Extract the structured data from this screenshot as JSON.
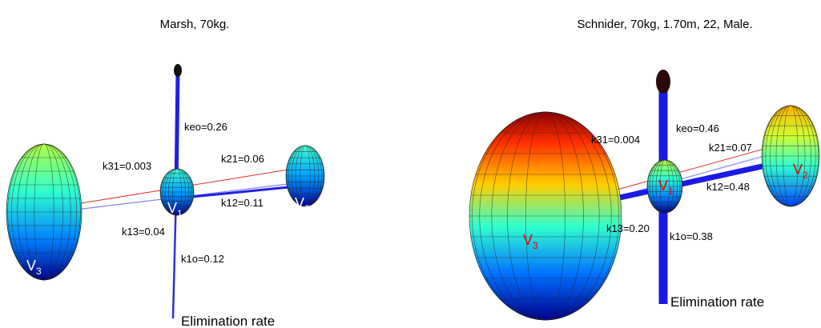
{
  "panels": [
    {
      "title": "Marsh, 70kg.",
      "compartments": [
        {
          "label": "V",
          "sub": "1"
        },
        {
          "label": "V",
          "sub": "2"
        },
        {
          "label": "V",
          "sub": "3"
        }
      ],
      "rates": {
        "keo": "keo=0.26",
        "k31": "k31=0.003",
        "k21": "k21=0.06",
        "k12": "k12=0.11",
        "k13": "k13=0.04",
        "k1o": "k1o=0.12"
      },
      "elimination": "Elimination rate"
    },
    {
      "title": "Schnider, 70kg, 1.70m, 22, Male.",
      "compartments": [
        {
          "label": "V",
          "sub": "1"
        },
        {
          "label": "V",
          "sub": "2"
        },
        {
          "label": "V",
          "sub": "3"
        }
      ],
      "rates": {
        "keo": "keo=0.46",
        "k31": "k31=0.004",
        "k21": "k21=0.07",
        "k12": "k12=0.48",
        "k13": "k13=0.20",
        "k1o": "k1o=0.38"
      },
      "elimination": "Elimination rate"
    }
  ]
}
